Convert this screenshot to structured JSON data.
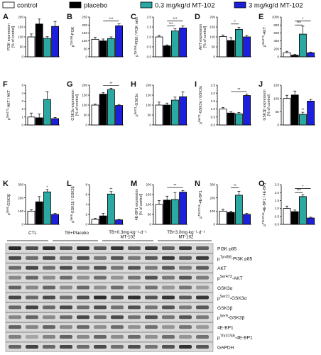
{
  "legend": {
    "items": [
      {
        "label": "control",
        "color": "#ffffff"
      },
      {
        "label": "placebo",
        "color": "#000000"
      },
      {
        "label": "0.3 mg/kg/d MT-102",
        "color": "#2aa9a2"
      },
      {
        "label": "3 mg/kg/d MT-102",
        "color": "#1c1fdc"
      }
    ]
  },
  "chart_data": [
    {
      "type": "bar",
      "letter": "A",
      "ylabel": "PI3K expression\n[% of control]",
      "yticks": [
        "0",
        "50",
        "100",
        "150",
        "200"
      ],
      "ylim": [
        0,
        200
      ],
      "values": [
        100,
        165,
        93,
        153
      ],
      "errors": [
        15,
        25,
        8,
        25
      ],
      "sigs": []
    },
    {
      "type": "bar",
      "letter": "B",
      "ylabel": "p^Tyr458-PI3K",
      "yticks": [
        "0",
        "50",
        "100",
        "150",
        "200",
        "250"
      ],
      "ylim": [
        0,
        250
      ],
      "values": [
        110,
        100,
        115,
        195
      ],
      "errors": [
        12,
        12,
        10,
        12
      ],
      "sigs": [
        {
          "from": 1,
          "to": 3,
          "label": "***",
          "level": 225
        }
      ]
    },
    {
      "type": "bar",
      "letter": "C",
      "ylabel": "p^Tyr458-PI3K / PI3K ratio",
      "yticks": [
        "0.0",
        "0.5",
        "1.0",
        "1.5",
        "2.0"
      ],
      "ylim": [
        0,
        2.0
      ],
      "values": [
        1.0,
        0.55,
        1.3,
        1.45
      ],
      "errors": [
        0.08,
        0.05,
        0.12,
        0.1
      ],
      "sigs": [
        {
          "from": 1,
          "to": 2,
          "label": "***",
          "level": 1.55
        },
        {
          "from": 1,
          "to": 3,
          "label": "***",
          "level": 1.8
        }
      ]
    },
    {
      "type": "bar",
      "letter": "D",
      "ylabel": "AKT expression\n[% of control]",
      "yticks": [
        "0",
        "50",
        "100",
        "150",
        "200"
      ],
      "ylim": [
        0,
        200
      ],
      "values": [
        102,
        82,
        138,
        100
      ],
      "errors": [
        8,
        15,
        10,
        8
      ],
      "sigs": [
        {
          "from": 1,
          "to": 2,
          "label": "*",
          "level": 165
        }
      ]
    },
    {
      "type": "bar",
      "letter": "E",
      "ylabel": "p^Ser473-AKT",
      "yticks": [
        "0",
        "200",
        "400",
        "600",
        "800",
        "1000"
      ],
      "ylim": [
        0,
        1000
      ],
      "values": [
        100,
        40,
        570,
        100
      ],
      "errors": [
        40,
        20,
        200,
        20
      ],
      "sigs": [
        {
          "from": 1,
          "to": 2,
          "label": "***",
          "level": 800
        },
        {
          "from": 1,
          "to": 3,
          "label": "*",
          "level": 900
        }
      ]
    },
    {
      "type": "bar",
      "letter": "F",
      "ylabel": "p^Ser473-AKT / AKT",
      "yticks": [
        "0",
        "1",
        "2",
        "3",
        "4",
        "5"
      ],
      "ylim": [
        0,
        5
      ],
      "values": [
        1.0,
        0.9,
        3.2,
        0.8
      ],
      "errors": [
        0.5,
        0.5,
        1.0,
        0.15
      ],
      "sigs": []
    },
    {
      "type": "bar",
      "letter": "G",
      "ylabel": "GSK3α expression\n[% of control]",
      "yticks": [
        "0",
        "50",
        "100",
        "150",
        "200"
      ],
      "ylim": [
        0,
        200
      ],
      "values": [
        100,
        155,
        178,
        98
      ],
      "errors": [
        5,
        8,
        6,
        5
      ],
      "sigs": [
        {
          "from": 1,
          "to": 3,
          "label": "**",
          "level": 198
        }
      ]
    },
    {
      "type": "bar",
      "letter": "H",
      "ylabel": "p^Ser21-GSK3α",
      "yticks": [
        "0",
        "50",
        "100",
        "150",
        "200"
      ],
      "ylim": [
        0,
        200
      ],
      "values": [
        100,
        100,
        125,
        142
      ],
      "errors": [
        15,
        10,
        15,
        25
      ],
      "sigs": []
    },
    {
      "type": "bar",
      "letter": "I",
      "ylabel": "p^Ser21-GSK3α / GSK3α",
      "yticks": [
        "0.0",
        "0.5",
        "1.0",
        "1.5",
        "2.0",
        "2.5"
      ],
      "ylim": [
        0,
        2.5
      ],
      "values": [
        1.0,
        0.75,
        0.7,
        1.85
      ],
      "errors": [
        0.1,
        0.08,
        0.08,
        0.1
      ],
      "sigs": [
        {
          "from": 1,
          "to": 3,
          "label": "**",
          "level": 2.1
        }
      ]
    },
    {
      "type": "bar",
      "letter": "J",
      "ylabel": "GSK3β expression\n(% of control)",
      "yticks": [
        "0",
        "50",
        "100",
        "150"
      ],
      "ylim": [
        0,
        150
      ],
      "values": [
        100,
        113,
        40,
        90
      ],
      "errors": [
        12,
        15,
        8,
        6
      ],
      "sigs": [
        {
          "at": 2,
          "label": "**"
        }
      ]
    },
    {
      "type": "bar",
      "letter": "K",
      "ylabel": "p^Ser9-GSK3β",
      "yticks": [
        "0",
        "100",
        "200",
        "300"
      ],
      "ylim": [
        0,
        300
      ],
      "values": [
        100,
        170,
        245,
        75
      ],
      "errors": [
        10,
        40,
        18,
        8
      ],
      "sigs": [
        {
          "at": 2,
          "label": "*"
        }
      ]
    },
    {
      "type": "bar",
      "letter": "L",
      "ylabel": "p^Ser9-GSK3β / GSK3β",
      "yticks": [
        "0",
        "2",
        "4",
        "6",
        "8"
      ],
      "ylim": [
        0,
        8
      ],
      "values": [
        1.0,
        1.7,
        6.1,
        0.9
      ],
      "errors": [
        0.2,
        0.5,
        0.5,
        0.1
      ],
      "sigs": [
        {
          "at": 2,
          "label": "**"
        }
      ]
    },
    {
      "type": "bar",
      "letter": "M",
      "ylabel": "4E-BP1 expression\n[% of control]",
      "yticks": [
        "0",
        "50",
        "100",
        "150",
        "200"
      ],
      "ylim": [
        0,
        200
      ],
      "values": [
        100,
        122,
        125,
        162
      ],
      "errors": [
        20,
        20,
        35,
        8
      ],
      "sigs": [
        {
          "from": 1,
          "to": 3,
          "label": "**",
          "level": 185
        }
      ]
    },
    {
      "type": "bar",
      "letter": "N",
      "ylabel": "p^Thr37/46-4E-BP1",
      "yticks": [
        "0",
        "100",
        "200",
        "300"
      ],
      "ylim": [
        0,
        300
      ],
      "values": [
        100,
        90,
        220,
        75
      ],
      "errors": [
        15,
        10,
        30,
        8
      ],
      "sigs": [
        {
          "from": 1,
          "to": 2,
          "label": "**",
          "level": 275
        }
      ]
    },
    {
      "type": "bar",
      "letter": "O",
      "ylabel": "p^Thr37/46-4E-BP1 / 4E-BP1",
      "yticks": [
        "0.0",
        "0.5",
        "1.0",
        "1.5",
        "2.0",
        "2.5"
      ],
      "ylim": [
        0,
        2.5
      ],
      "values": [
        1.0,
        0.8,
        1.75,
        0.4
      ],
      "errors": [
        0.15,
        0.1,
        0.12,
        0.05
      ],
      "sigs": [
        {
          "from": 1,
          "to": 2,
          "label": "***",
          "level": 2.0
        },
        {
          "from": 1,
          "to": 3,
          "label": "*",
          "level": 2.25
        }
      ]
    }
  ],
  "blot": {
    "groups": [
      "CTL",
      "TB+Placebo",
      "TB+0.3mg·kg⁻¹·d⁻¹ MT-102",
      "TB+3.0mg·kg⁻¹·d⁻¹ MT-102"
    ],
    "rows": [
      "PI3K p85",
      "p^Tyr458-PI3K p85",
      "AKT",
      "p^Ser473-AKT",
      "GSK3α",
      "p^Ser21-GSK3α",
      "GSK3β",
      "p^Ser9-GSK3β",
      "4E-BP1",
      "p^Thr37/46-4E-BP1",
      "GAPDH"
    ]
  }
}
